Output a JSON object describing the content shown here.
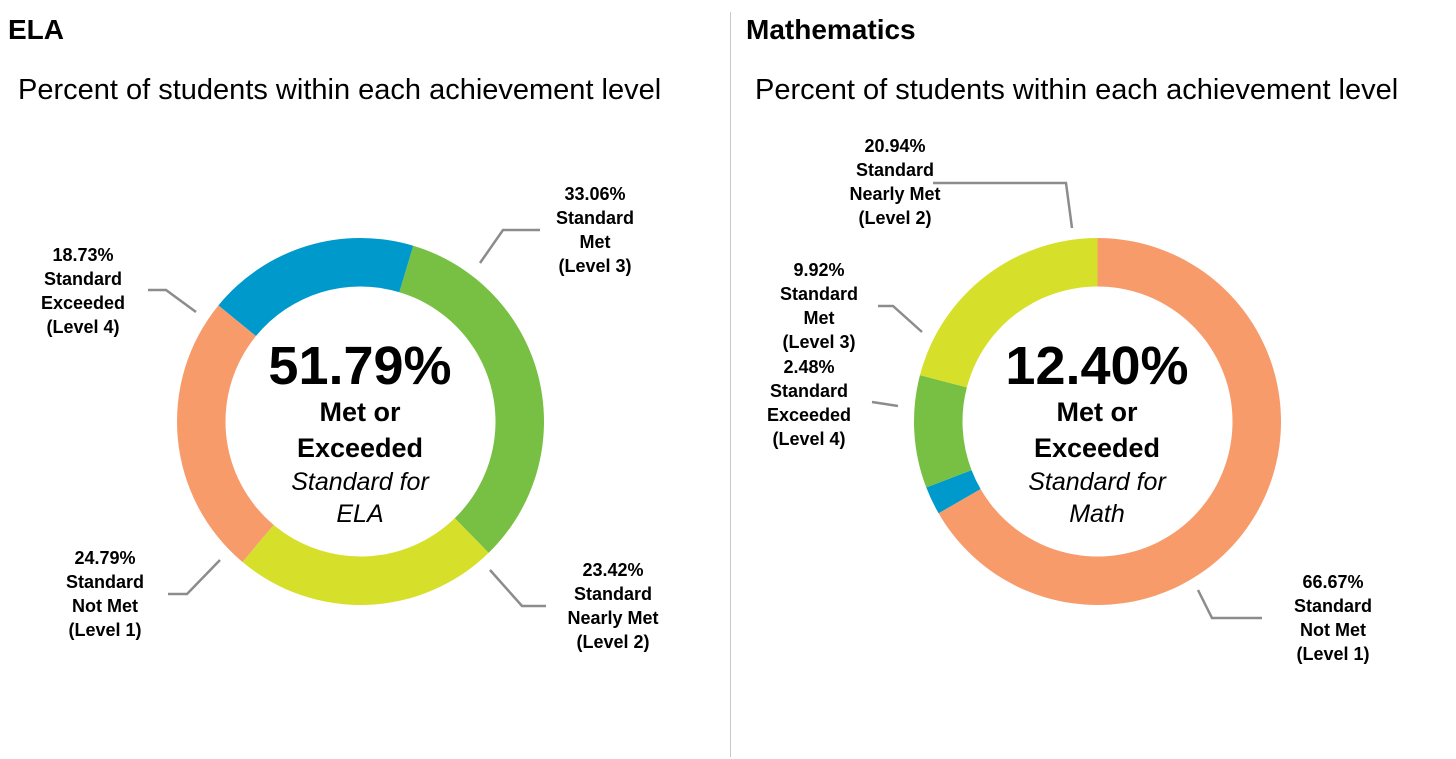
{
  "panels": [
    {
      "title": "ELA",
      "subtitle": "Percent of students within each achievement level",
      "center": {
        "percent": "51.79%",
        "line1": "Met or",
        "line2": "Exceeded",
        "line3": "Standard for",
        "line4": "ELA"
      },
      "labels": [
        {
          "pct": "33.06%",
          "lines": [
            "Standard",
            "Met",
            "(Level 3)"
          ]
        },
        {
          "pct": "18.73%",
          "lines": [
            "Standard",
            "Exceeded",
            "(Level 4)"
          ]
        },
        {
          "pct": "24.79%",
          "lines": [
            "Standard",
            "Not Met",
            "(Level 1)"
          ]
        },
        {
          "pct": "23.42%",
          "lines": [
            "Standard",
            "Nearly Met",
            "(Level 2)"
          ]
        }
      ]
    },
    {
      "title": "Mathematics",
      "subtitle": "Percent of students within each achievement level",
      "center": {
        "percent": "12.40%",
        "line1": "Met or",
        "line2": "Exceeded",
        "line3": "Standard for",
        "line4": "Math"
      },
      "labels": [
        {
          "pct": "20.94%",
          "lines": [
            "Standard",
            "Nearly Met",
            "(Level 2)"
          ]
        },
        {
          "pct": "9.92%",
          "lines": [
            "Standard",
            "Met",
            "(Level 3)"
          ]
        },
        {
          "pct": "2.48%",
          "lines": [
            "Standard",
            "Exceeded",
            "(Level 4)"
          ]
        },
        {
          "pct": "66.67%",
          "lines": [
            "Standard",
            "Not Met",
            "(Level 1)"
          ]
        }
      ]
    }
  ],
  "chart_data": [
    {
      "type": "pie",
      "title": "ELA",
      "subtitle": "Percent of students within each achievement level",
      "categories": [
        "Standard Met (Level 3)",
        "Standard Nearly Met (Level 2)",
        "Standard Not Met (Level 1)",
        "Standard Exceeded (Level 4)"
      ],
      "values": [
        33.06,
        23.42,
        24.79,
        18.73
      ],
      "colors": [
        "#77c043",
        "#d6e02a",
        "#f79b6b",
        "#0099cc"
      ],
      "center_value": 51.79
    },
    {
      "type": "pie",
      "title": "Mathematics",
      "subtitle": "Percent of students within each achievement level",
      "categories": [
        "Standard Not Met (Level 1)",
        "Standard Exceeded (Level 4)",
        "Standard Met (Level 3)",
        "Standard Nearly Met (Level 2)"
      ],
      "values": [
        66.67,
        2.48,
        9.92,
        20.94
      ],
      "colors": [
        "#f79b6b",
        "#0099cc",
        "#77c043",
        "#d6e02a"
      ],
      "center_value": 12.4
    }
  ]
}
